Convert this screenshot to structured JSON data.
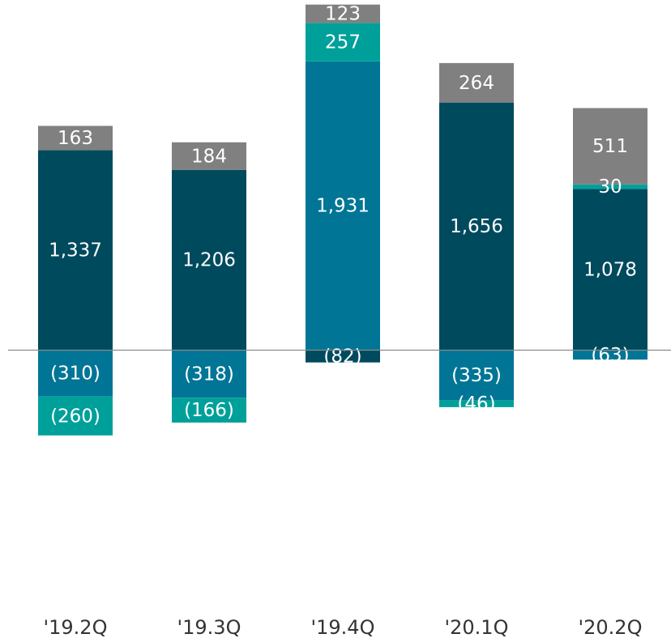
{
  "chart_data": {
    "type": "stacked_bar",
    "categories": [
      "'19.2Q",
      "'19.3Q",
      "'19.4Q",
      "'20.1Q",
      "'20.2Q"
    ],
    "series": [
      {
        "color": "#004a5e",
        "values": [
          1337,
          1206,
          -82,
          1656,
          1078
        ],
        "value_labels": [
          "1,337",
          "1,206",
          "(82)",
          "1,656",
          "1,078"
        ]
      },
      {
        "color": "#007596",
        "values": [
          -310,
          -318,
          1931,
          -335,
          -63
        ],
        "value_labels": [
          "(310)",
          "(318)",
          "1,931",
          "(335)",
          "(63)"
        ]
      },
      {
        "color": "#00a09a",
        "values": [
          -260,
          -166,
          257,
          -46,
          30
        ],
        "value_labels": [
          "(260)",
          "(166)",
          "257",
          "(46)",
          "30"
        ]
      },
      {
        "color": "#808080",
        "values": [
          163,
          184,
          123,
          264,
          511
        ],
        "value_labels": [
          "163",
          "184",
          "123",
          "264",
          "511"
        ]
      }
    ],
    "ylim": [
      -1700,
      2320
    ]
  }
}
